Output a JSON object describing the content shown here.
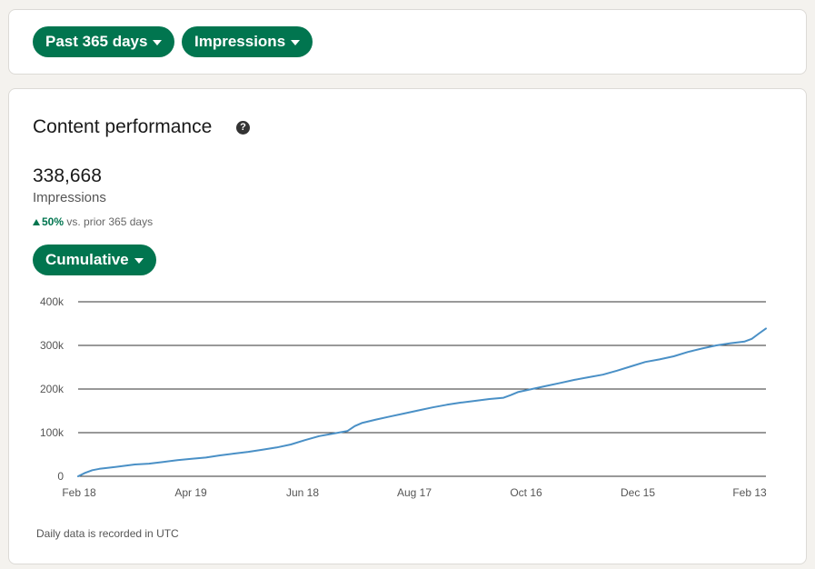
{
  "filters": {
    "range_label": "Past 365 days",
    "metric_label": "Impressions"
  },
  "card": {
    "title": "Content performance",
    "help_icon": "question-circle-icon",
    "total": "338,668",
    "metric": "Impressions",
    "change_value": "50%",
    "change_text": "vs. prior 365 days",
    "mode_label": "Cumulative",
    "footnote": "Daily data is recorded in UTC"
  },
  "colors": {
    "accent": "#01754f",
    "line": "#4a90c6",
    "grid": "#333333"
  },
  "chart_data": {
    "type": "line",
    "y_ticks": [
      "0",
      "100k",
      "200k",
      "300k",
      "400k"
    ],
    "y_tick_values": [
      0,
      100000,
      200000,
      300000,
      400000
    ],
    "x_ticks": [
      "Feb 18",
      "Apr 19",
      "Jun 18",
      "Aug 17",
      "Oct 16",
      "Dec 15",
      "Feb 13"
    ],
    "ylim": [
      0,
      400000
    ],
    "grid": true,
    "series": [
      {
        "values": [
          [
            0,
            0
          ],
          [
            5,
            8000
          ],
          [
            10,
            14000
          ],
          [
            15,
            17000
          ],
          [
            20,
            19000
          ],
          [
            30,
            23000
          ],
          [
            40,
            27000
          ],
          [
            50,
            29000
          ],
          [
            60,
            33000
          ],
          [
            70,
            37000
          ],
          [
            80,
            40000
          ],
          [
            90,
            43000
          ],
          [
            100,
            48000
          ],
          [
            110,
            52000
          ],
          [
            120,
            56000
          ],
          [
            130,
            61000
          ],
          [
            140,
            66000
          ],
          [
            150,
            73000
          ],
          [
            160,
            83000
          ],
          [
            170,
            92000
          ],
          [
            180,
            98000
          ],
          [
            190,
            104000
          ],
          [
            195,
            115000
          ],
          [
            200,
            122000
          ],
          [
            210,
            130000
          ],
          [
            220,
            137000
          ],
          [
            230,
            144000
          ],
          [
            240,
            151000
          ],
          [
            250,
            158000
          ],
          [
            260,
            164000
          ],
          [
            270,
            169000
          ],
          [
            280,
            173000
          ],
          [
            290,
            177000
          ],
          [
            300,
            180000
          ],
          [
            305,
            186000
          ],
          [
            310,
            193000
          ],
          [
            320,
            200000
          ],
          [
            330,
            207000
          ],
          [
            340,
            214000
          ],
          [
            350,
            221000
          ],
          [
            360,
            227000
          ],
          [
            370,
            233000
          ],
          [
            380,
            242000
          ],
          [
            390,
            252000
          ],
          [
            400,
            262000
          ],
          [
            410,
            268000
          ],
          [
            420,
            275000
          ],
          [
            430,
            285000
          ],
          [
            440,
            293000
          ],
          [
            450,
            300000
          ],
          [
            460,
            305000
          ],
          [
            470,
            309000
          ],
          [
            475,
            315000
          ],
          [
            480,
            327000
          ],
          [
            485,
            338668
          ]
        ]
      }
    ]
  }
}
